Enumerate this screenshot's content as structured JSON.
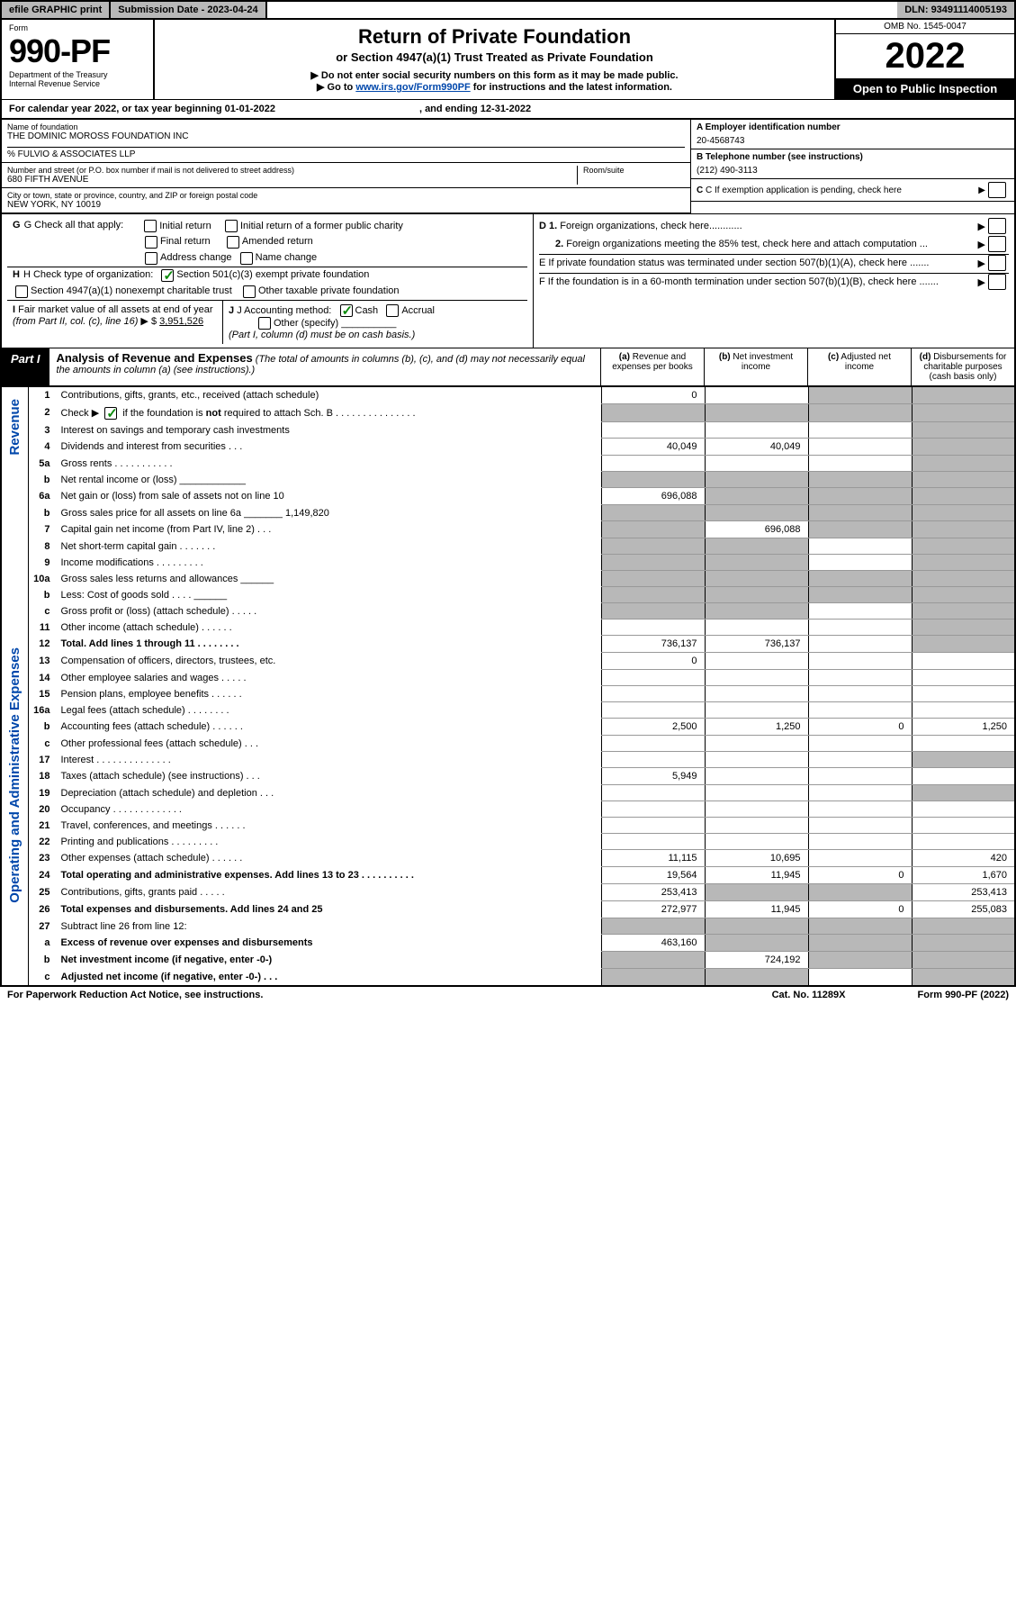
{
  "topbar": {
    "efile": "efile GRAPHIC print",
    "subdate_label": "Submission Date - ",
    "subdate": "2023-04-24",
    "dln_label": "DLN: ",
    "dln": "93491114005193"
  },
  "header": {
    "form_label": "Form",
    "form_number": "990-PF",
    "dept": "Department of the Treasury",
    "irs": "Internal Revenue Service",
    "title": "Return of Private Foundation",
    "subtitle": "or Section 4947(a)(1) Trust Treated as Private Foundation",
    "note1": "▶ Do not enter social security numbers on this form as it may be made public.",
    "note2_pre": "▶ Go to ",
    "note2_link": "www.irs.gov/Form990PF",
    "note2_post": " for instructions and the latest information.",
    "omb": "OMB No. 1545-0047",
    "year": "2022",
    "inspect": "Open to Public Inspection"
  },
  "calyear": {
    "prefix": "For calendar year 2022, or tax year beginning ",
    "begin": "01-01-2022",
    "mid": ", and ending ",
    "end": "12-31-2022"
  },
  "info": {
    "name_label": "Name of foundation",
    "name": "THE DOMINIC MOROSS FOUNDATION INC",
    "care_of": "% FULVIO & ASSOCIATES LLP",
    "addr_label": "Number and street (or P.O. box number if mail is not delivered to street address)",
    "addr": "680 FIFTH AVENUE",
    "room_label": "Room/suite",
    "city_label": "City or town, state or province, country, and ZIP or foreign postal code",
    "city": "NEW YORK, NY  10019",
    "ein_label": "A Employer identification number",
    "ein": "20-4568743",
    "phone_label": "B Telephone number (see instructions)",
    "phone": "(212) 490-3113",
    "c_label": "C If exemption application is pending, check here",
    "d1": "D 1. Foreign organizations, check here............",
    "d2": "2. Foreign organizations meeting the 85% test, check here and attach computation ...",
    "e": "E  If private foundation status was terminated under section 507(b)(1)(A), check here .......",
    "f": "F  If the foundation is in a 60-month termination under section 507(b)(1)(B), check here .......",
    "g_label": "G Check all that apply:",
    "g_opts": [
      "Initial return",
      "Initial return of a former public charity",
      "Final return",
      "Amended return",
      "Address change",
      "Name change"
    ],
    "h_label": "H Check type of organization:",
    "h1": "Section 501(c)(3) exempt private foundation",
    "h2": "Section 4947(a)(1) nonexempt charitable trust",
    "h3": "Other taxable private foundation",
    "i_label": "I Fair market value of all assets at end of year (from Part II, col. (c), line 16) ▶ $",
    "i_val": "3,951,526",
    "j_label": "J Accounting method:",
    "j_cash": "Cash",
    "j_accrual": "Accrual",
    "j_other": "Other (specify)",
    "j_note": "(Part I, column (d) must be on cash basis.)"
  },
  "part1": {
    "label": "Part I",
    "title": "Analysis of Revenue and Expenses",
    "title_note": "(The total of amounts in columns (b), (c), and (d) may not necessarily equal the amounts in column (a) (see instructions).)",
    "col_a": "(a)  Revenue and expenses per books",
    "col_b": "(b)  Net investment income",
    "col_c": "(c)  Adjusted net income",
    "col_d": "(d)  Disbursements for charitable purposes (cash basis only)"
  },
  "side_labels": {
    "revenue": "Revenue",
    "expenses": "Operating and Administrative Expenses"
  },
  "rows": [
    {
      "n": "1",
      "desc": "Contributions, gifts, grants, etc., received (attach schedule)",
      "a": "0",
      "b": "",
      "c": "grey",
      "d": "grey"
    },
    {
      "n": "2",
      "desc": "Check ▶ ☑ if the foundation is not required to attach Sch. B       .   .   .   .   .   .   .   .   .   .   .   .   .   .   .",
      "a": "grey",
      "b": "grey",
      "c": "grey",
      "d": "grey",
      "checked": true
    },
    {
      "n": "3",
      "desc": "Interest on savings and temporary cash investments",
      "a": "",
      "b": "",
      "c": "",
      "d": "grey"
    },
    {
      "n": "4",
      "desc": "Dividends and interest from securities    .    .    .",
      "a": "40,049",
      "b": "40,049",
      "c": "",
      "d": "grey"
    },
    {
      "n": "5a",
      "desc": "Gross rents       .   .   .   .   .   .   .   .   .   .   .",
      "a": "",
      "b": "",
      "c": "",
      "d": "grey"
    },
    {
      "n": "b",
      "desc": "Net rental income or (loss)  ____________",
      "a": "grey",
      "b": "grey",
      "c": "grey",
      "d": "grey"
    },
    {
      "n": "6a",
      "desc": "Net gain or (loss) from sale of assets not on line 10",
      "a": "696,088",
      "b": "grey",
      "c": "grey",
      "d": "grey"
    },
    {
      "n": "b",
      "desc": "Gross sales price for all assets on line 6a _______ 1,149,820",
      "a": "grey",
      "b": "grey",
      "c": "grey",
      "d": "grey"
    },
    {
      "n": "7",
      "desc": "Capital gain net income (from Part IV, line 2)   .   .   .",
      "a": "grey",
      "b": "696,088",
      "c": "grey",
      "d": "grey"
    },
    {
      "n": "8",
      "desc": "Net short-term capital gain   .   .   .   .   .   .   .",
      "a": "grey",
      "b": "grey",
      "c": "",
      "d": "grey"
    },
    {
      "n": "9",
      "desc": "Income modifications  .   .   .   .   .   .   .   .   .",
      "a": "grey",
      "b": "grey",
      "c": "",
      "d": "grey"
    },
    {
      "n": "10a",
      "desc": "Gross sales less returns and allowances  ______",
      "a": "grey",
      "b": "grey",
      "c": "grey",
      "d": "grey"
    },
    {
      "n": "b",
      "desc": "Less: Cost of goods sold     .   .   .   .   ______",
      "a": "grey",
      "b": "grey",
      "c": "grey",
      "d": "grey"
    },
    {
      "n": "c",
      "desc": "Gross profit or (loss) (attach schedule)    .   .   .   .   .",
      "a": "grey",
      "b": "grey",
      "c": "",
      "d": "grey"
    },
    {
      "n": "11",
      "desc": "Other income (attach schedule)    .   .   .   .   .   .",
      "a": "",
      "b": "",
      "c": "",
      "d": "grey"
    },
    {
      "n": "12",
      "desc": "Total. Add lines 1 through 11   .   .   .   .   .   .   .   .",
      "a": "736,137",
      "b": "736,137",
      "c": "",
      "d": "grey",
      "bold": true
    },
    {
      "n": "13",
      "desc": "Compensation of officers, directors, trustees, etc.",
      "a": "0",
      "b": "",
      "c": "",
      "d": ""
    },
    {
      "n": "14",
      "desc": "Other employee salaries and wages    .   .   .   .   .",
      "a": "",
      "b": "",
      "c": "",
      "d": ""
    },
    {
      "n": "15",
      "desc": "Pension plans, employee benefits  .   .   .   .   .   .",
      "a": "",
      "b": "",
      "c": "",
      "d": ""
    },
    {
      "n": "16a",
      "desc": "Legal fees (attach schedule)  .   .   .   .   .   .   .   .",
      "a": "",
      "b": "",
      "c": "",
      "d": ""
    },
    {
      "n": "b",
      "desc": "Accounting fees (attach schedule)  .   .   .   .   .   .",
      "a": "2,500",
      "b": "1,250",
      "c": "0",
      "d": "1,250"
    },
    {
      "n": "c",
      "desc": "Other professional fees (attach schedule)    .   .   .",
      "a": "",
      "b": "",
      "c": "",
      "d": ""
    },
    {
      "n": "17",
      "desc": "Interest  .   .   .   .   .   .   .   .   .   .   .   .   .   .",
      "a": "",
      "b": "",
      "c": "",
      "d": "grey"
    },
    {
      "n": "18",
      "desc": "Taxes (attach schedule) (see instructions)     .   .   .",
      "a": "5,949",
      "b": "",
      "c": "",
      "d": ""
    },
    {
      "n": "19",
      "desc": "Depreciation (attach schedule) and depletion    .   .   .",
      "a": "",
      "b": "",
      "c": "",
      "d": "grey"
    },
    {
      "n": "20",
      "desc": "Occupancy  .   .   .   .   .   .   .   .   .   .   .   .   .",
      "a": "",
      "b": "",
      "c": "",
      "d": ""
    },
    {
      "n": "21",
      "desc": "Travel, conferences, and meetings  .   .   .   .   .   .",
      "a": "",
      "b": "",
      "c": "",
      "d": ""
    },
    {
      "n": "22",
      "desc": "Printing and publications  .   .   .   .   .   .   .   .   .",
      "a": "",
      "b": "",
      "c": "",
      "d": ""
    },
    {
      "n": "23",
      "desc": "Other expenses (attach schedule)  .   .   .   .   .   .",
      "a": "11,115",
      "b": "10,695",
      "c": "",
      "d": "420"
    },
    {
      "n": "24",
      "desc": "Total operating and administrative expenses. Add lines 13 to 23   .   .   .   .   .   .   .   .   .   .",
      "a": "19,564",
      "b": "11,945",
      "c": "0",
      "d": "1,670",
      "bold": true
    },
    {
      "n": "25",
      "desc": "Contributions, gifts, grants paid     .   .   .   .   .",
      "a": "253,413",
      "b": "grey",
      "c": "grey",
      "d": "253,413"
    },
    {
      "n": "26",
      "desc": "Total expenses and disbursements. Add lines 24 and 25",
      "a": "272,977",
      "b": "11,945",
      "c": "0",
      "d": "255,083",
      "bold": true
    },
    {
      "n": "27",
      "desc": "Subtract line 26 from line 12:",
      "a": "grey",
      "b": "grey",
      "c": "grey",
      "d": "grey"
    },
    {
      "n": "a",
      "desc": "Excess of revenue over expenses and disbursements",
      "a": "463,160",
      "b": "grey",
      "c": "grey",
      "d": "grey",
      "bold": true
    },
    {
      "n": "b",
      "desc": "Net investment income (if negative, enter -0-)",
      "a": "grey",
      "b": "724,192",
      "c": "grey",
      "d": "grey",
      "bold": true
    },
    {
      "n": "c",
      "desc": "Adjusted net income (if negative, enter -0-)   .   .   .",
      "a": "grey",
      "b": "grey",
      "c": "",
      "d": "grey",
      "bold": true
    }
  ],
  "footer": {
    "left": "For Paperwork Reduction Act Notice, see instructions.",
    "mid": "Cat. No. 11289X",
    "right": "Form 990-PF (2022)"
  }
}
